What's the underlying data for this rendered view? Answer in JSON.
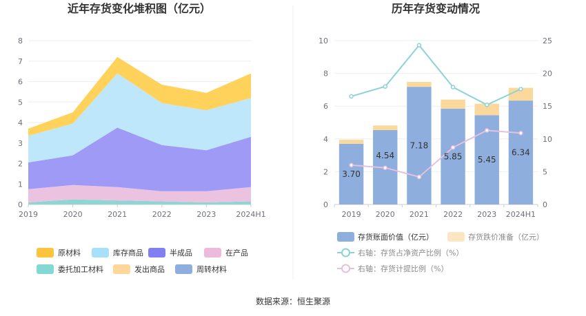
{
  "source_text": "数据来源：恒生聚源",
  "chart_data": [
    {
      "type": "area",
      "title": "近年存货变化堆积图（亿元）",
      "categories": [
        "2019",
        "2020",
        "2021",
        "2022",
        "2023",
        "2024H1"
      ],
      "ylim": [
        0,
        8
      ],
      "yticks": [
        "0",
        "1",
        "2",
        "3",
        "4",
        "5",
        "6",
        "7",
        "8"
      ],
      "grid": true,
      "legend_position": "bottom",
      "series": [
        {
          "name": "委托加工材料",
          "color": "#8fd6d2",
          "values": [
            0.1,
            0.25,
            0.2,
            0.15,
            0.1,
            0.15
          ]
        },
        {
          "name": "在产品",
          "color": "#ebc3e0",
          "values": [
            0.65,
            0.7,
            0.65,
            0.5,
            0.55,
            0.7
          ]
        },
        {
          "name": "半成品",
          "color": "#9e9af5",
          "values": [
            1.3,
            1.45,
            2.9,
            2.25,
            2.0,
            2.45
          ]
        },
        {
          "name": "库存商品",
          "color": "#bfe7fb",
          "values": [
            1.3,
            1.55,
            2.65,
            2.05,
            1.95,
            1.9
          ]
        },
        {
          "name": "原材料",
          "color": "#ffd25c",
          "values": [
            0.35,
            0.55,
            0.8,
            0.9,
            0.85,
            1.2
          ]
        }
      ],
      "legend": [
        {
          "name": "原材料",
          "color": "#fcc43d"
        },
        {
          "name": "库存商品",
          "color": "#a8e0f9"
        },
        {
          "name": "半成品",
          "color": "#8080f2"
        },
        {
          "name": "在产品",
          "color": "#ebbadd"
        },
        {
          "name": "委托加工材料",
          "color": "#84d8d3"
        },
        {
          "name": "发出商品",
          "color": "#ffd79b"
        },
        {
          "name": "周转材料",
          "color": "#8eaede"
        }
      ]
    },
    {
      "type": "bar",
      "title": "历年存货变动情况",
      "categories": [
        "2019",
        "2020",
        "2021",
        "2022",
        "2023",
        "2024H1"
      ],
      "ylim": [
        0,
        10
      ],
      "yticks": [
        "0",
        "2",
        "4",
        "6",
        "8",
        "10"
      ],
      "y2lim": [
        0,
        25
      ],
      "y2ticks": [
        "0",
        "5",
        "10",
        "15",
        "20",
        "25"
      ],
      "grid": true,
      "legend_position": "bottom",
      "bar_labels": [
        "3.70",
        "4.54",
        "7.18",
        "5.85",
        "5.45",
        "6.34"
      ],
      "series": [
        {
          "name": "存货账面价值（亿元）",
          "kind": "bar",
          "axis": "left",
          "color": "#8eaede",
          "values": [
            3.7,
            4.54,
            7.18,
            5.85,
            5.45,
            6.34
          ]
        },
        {
          "name": "存货跌价准备（亿元）",
          "kind": "bar-stack",
          "axis": "left",
          "color": "#fbd99d",
          "values": [
            0.25,
            0.28,
            0.3,
            0.55,
            0.7,
            0.78
          ]
        },
        {
          "name": "右轴：存货占净资产比例（%）",
          "kind": "line",
          "axis": "right",
          "color": "#8bd3d8",
          "values": [
            16.5,
            18.0,
            24.3,
            17.9,
            15.2,
            17.6
          ]
        },
        {
          "name": "右轴：存货计提比例（%）",
          "kind": "line",
          "axis": "right",
          "color": "#e4c1de",
          "values": [
            6.0,
            5.6,
            4.2,
            8.7,
            11.3,
            10.9
          ]
        }
      ]
    }
  ]
}
